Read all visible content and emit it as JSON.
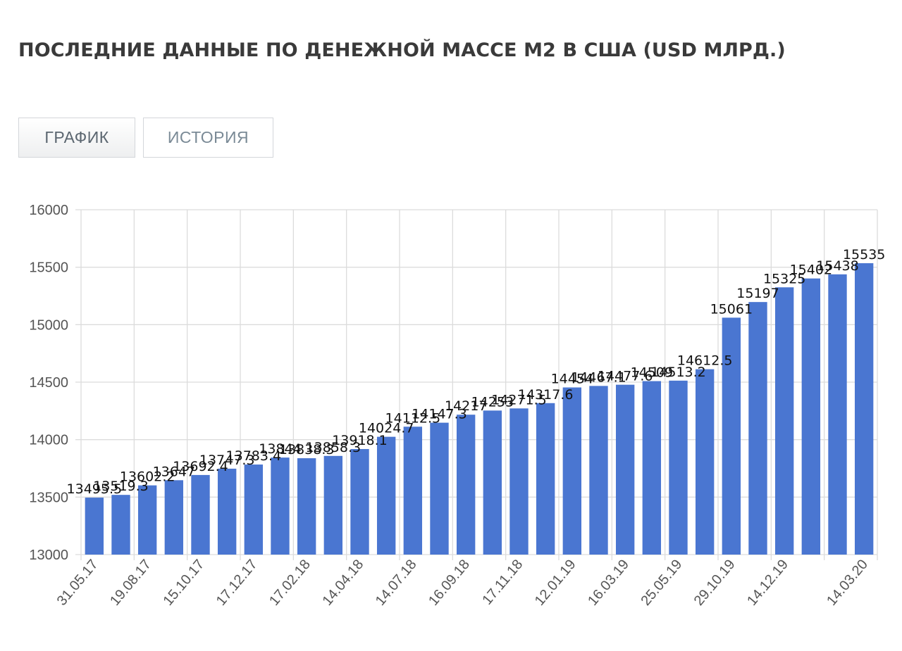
{
  "header": {
    "title": "ПОСЛЕДНИЕ ДАННЫЕ ПО ДЕНЕЖНОЙ МАССЕ M2 В США (USD МЛРД.)"
  },
  "tabs": [
    {
      "label": "ГРАФИК",
      "active": true
    },
    {
      "label": "ИСТОРИЯ",
      "active": false
    }
  ],
  "colors": {
    "bar": "#4a76d1",
    "grid": "#dcdcdc",
    "axis_text": "#555555",
    "label_text": "#111111"
  },
  "chart_data": {
    "type": "bar",
    "title": "",
    "xlabel": "",
    "ylabel": "",
    "ylim": [
      13000,
      16000
    ],
    "y_ticks": [
      13000,
      13500,
      14000,
      14500,
      15000,
      15500,
      16000
    ],
    "grid": true,
    "legend": "none",
    "series": [
      {
        "values": [
          13495.5,
          13519.3,
          13602.2,
          13647,
          13692.4,
          13747.3,
          13783.4,
          13844,
          13838.3,
          13858.3,
          13918.1,
          14024.7,
          14112.5,
          14147.3,
          14217,
          14253,
          14271.5,
          14317.6,
          14454,
          14467.1,
          14477.6,
          14509,
          14513.2,
          14612.5,
          15061,
          15197,
          15325,
          15402,
          15438,
          15535
        ]
      }
    ],
    "x_tick_labels": [
      {
        "bar": 0,
        "label": "31.05.17"
      },
      {
        "bar": 2,
        "label": "19.08.17"
      },
      {
        "bar": 4,
        "label": "15.10.17"
      },
      {
        "bar": 6,
        "label": "17.12.17"
      },
      {
        "bar": 8,
        "label": "17.02.18"
      },
      {
        "bar": 10,
        "label": "14.04.18"
      },
      {
        "bar": 12,
        "label": "14.07.18"
      },
      {
        "bar": 14,
        "label": "16.09.18"
      },
      {
        "bar": 16,
        "label": "17.11.18"
      },
      {
        "bar": 18,
        "label": "12.01.19"
      },
      {
        "bar": 20,
        "label": "16.03.19"
      },
      {
        "bar": 22,
        "label": "25.05.19"
      },
      {
        "bar": 24,
        "label": "29.10.19"
      },
      {
        "bar": 26,
        "label": "14.12.19"
      },
      {
        "bar": 29,
        "label": "14.03.20"
      }
    ]
  }
}
